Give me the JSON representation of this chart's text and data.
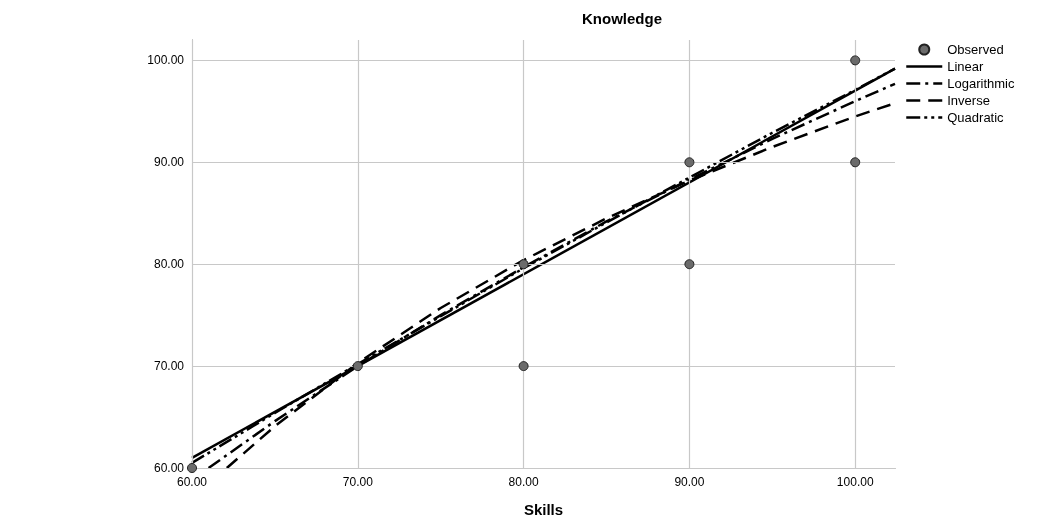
{
  "chart_data": {
    "type": "scatter",
    "title": "Knowledge",
    "xlabel": "Skills",
    "xlim": [
      60,
      102.4
    ],
    "ylim": [
      60,
      102
    ],
    "xticks": [
      {
        "value": 60,
        "label": "60.00"
      },
      {
        "value": 70,
        "label": "70.00"
      },
      {
        "value": 80,
        "label": "80.00"
      },
      {
        "value": 90,
        "label": "90.00"
      },
      {
        "value": 100,
        "label": "100.00"
      }
    ],
    "yticks": [
      {
        "value": 60,
        "label": "60.00"
      },
      {
        "value": 70,
        "label": "70.00"
      },
      {
        "value": 80,
        "label": "80.00"
      },
      {
        "value": 90,
        "label": "90.00"
      },
      {
        "value": 100,
        "label": "100.00"
      }
    ],
    "grid": true,
    "legend": "top right",
    "series": [
      {
        "name": "Observed",
        "marker": "circle",
        "color": "#6b6b6b",
        "x": [
          60,
          70,
          80,
          80,
          90,
          90,
          100,
          100
        ],
        "values": [
          60,
          70,
          80,
          70,
          90,
          80,
          100,
          90
        ]
      },
      {
        "name": "Linear",
        "type": "line",
        "line_style": "solid",
        "color": "#000000",
        "x": [
          60,
          102.4
        ],
        "values": [
          61,
          99.2
        ]
      },
      {
        "name": "Logarithmic",
        "type": "line",
        "line_style": "dashdot",
        "color": "#000000",
        "x": [
          61,
          65,
          70,
          75,
          80,
          85,
          90,
          95,
          100,
          102.4
        ],
        "values": [
          60,
          64.6,
          70,
          75,
          79.7,
          84.2,
          88.3,
          92.3,
          96,
          97.7
        ]
      },
      {
        "name": "Inverse",
        "type": "line",
        "line_style": "dashed",
        "color": "#000000",
        "x": [
          62.1,
          65,
          70,
          75,
          80,
          85,
          90,
          95,
          100,
          102.4
        ],
        "values": [
          60,
          64.1,
          70.3,
          75.7,
          80.4,
          84.5,
          88.2,
          91.5,
          94.5,
          95.8
        ]
      },
      {
        "name": "Quadratic",
        "type": "line",
        "line_style": "dashdotdot",
        "color": "#000000",
        "x": [
          60,
          65,
          70,
          75,
          80,
          85,
          90,
          95,
          100,
          102.4
        ],
        "values": [
          60.5,
          65.4,
          70.2,
          74.9,
          79.6,
          84.1,
          88.5,
          92.9,
          97.1,
          99.2
        ]
      }
    ]
  }
}
